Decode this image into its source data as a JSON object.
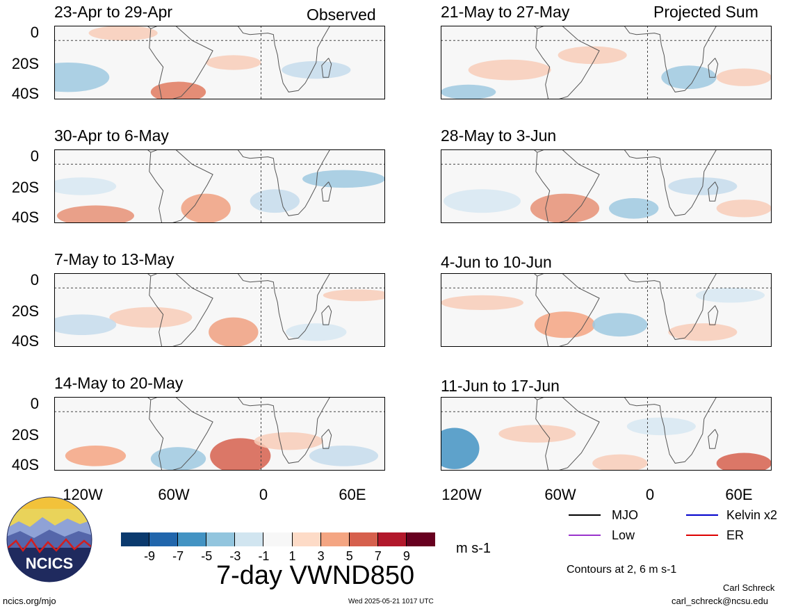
{
  "header": {
    "left_label": "Observed",
    "right_label": "Projected Sum"
  },
  "panels_left": [
    {
      "title": "23-Apr to 29-Apr"
    },
    {
      "title": "30-Apr to 6-May"
    },
    {
      "title": "7-May to 13-May"
    },
    {
      "title": "14-May to 20-May"
    }
  ],
  "panels_right": [
    {
      "title": "21-May to 27-May"
    },
    {
      "title": "28-May to 3-Jun"
    },
    {
      "title": "4-Jun to 10-Jun"
    },
    {
      "title": "11-Jun to 17-Jun"
    }
  ],
  "y_ticks": [
    "0",
    "20S",
    "40S"
  ],
  "x_ticks": [
    "120W",
    "60W",
    "0",
    "60E"
  ],
  "legend": {
    "mjo": {
      "label": "MJO",
      "color": "#000000"
    },
    "kelvin": {
      "label": "Kelvin x2",
      "color": "#0000cc"
    },
    "low": {
      "label": "Low",
      "color": "#9933cc"
    },
    "er": {
      "label": "ER",
      "color": "#dd0000"
    },
    "contours_note": "Contours at 2, 6 m s-1"
  },
  "colorbar": {
    "ticks": [
      "-9",
      "-7",
      "-5",
      "-3",
      "-1",
      "1",
      "3",
      "5",
      "7",
      "9"
    ],
    "colors": [
      "#0b3a6e",
      "#2166ac",
      "#4393c3",
      "#92c5de",
      "#d1e5f0",
      "#f7f7f7",
      "#fddbc7",
      "#f4a582",
      "#d6604d",
      "#b2182b",
      "#67001f"
    ],
    "units": "m s-1"
  },
  "title": "7-day VWND850",
  "logo_text": "NCICS",
  "footer": {
    "url": "ncics.org/mjo",
    "timestamp": "Wed 2025-05-21 1017 UTC",
    "author": "Carl Schreck",
    "email": "carl_schreck@ncsu.edu"
  }
}
